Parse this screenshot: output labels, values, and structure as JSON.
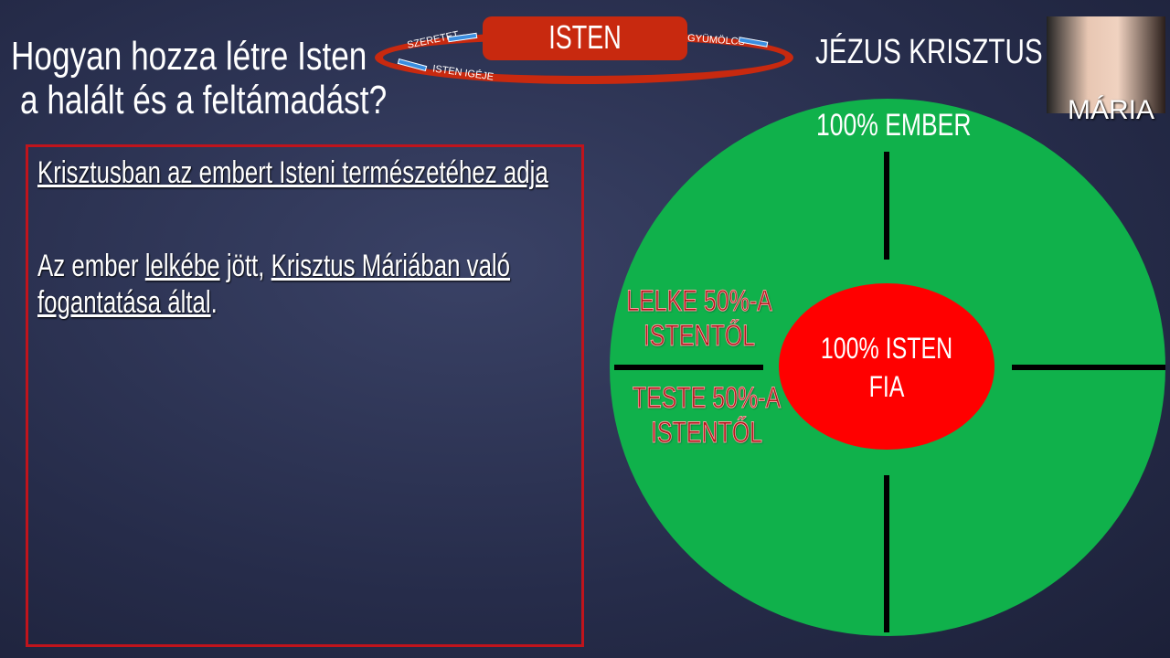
{
  "title": {
    "line1": "Hogyan hozza létre Isten",
    "line2": "a halált és a feltámadást?"
  },
  "cycle": {
    "center": "ISTEN",
    "left_top": "SZERETET",
    "left_bottom": "ISTEN IGÉJE",
    "right": "GYÜMÖLCS",
    "arrow_color": "#3a8ee0",
    "ring_color": "#c8290f"
  },
  "heading": "JÉZUS KRISZTUS",
  "photo": {
    "label": "MÁRIA"
  },
  "box": {
    "heading": "Krisztusban az embert Isteni természetéhez adja",
    "p_pre": "Az ember ",
    "p_link1": "lelkébe",
    "p_mid": " jött, ",
    "p_link2": "Krisztus Máriában való fogantatása által",
    "p_end": "."
  },
  "diagram": {
    "outer_label": "100% EMBER",
    "inner_line1": "100% ISTEN",
    "inner_line2": "FIA",
    "left_top1": "LELKE 50%-A",
    "left_top2": "ISTENTŐL",
    "left_bot1": "TESTE 50%-A",
    "left_bot2": "ISTENTŐL",
    "outer_color": "#10b14b",
    "inner_color": "#ff0000"
  }
}
